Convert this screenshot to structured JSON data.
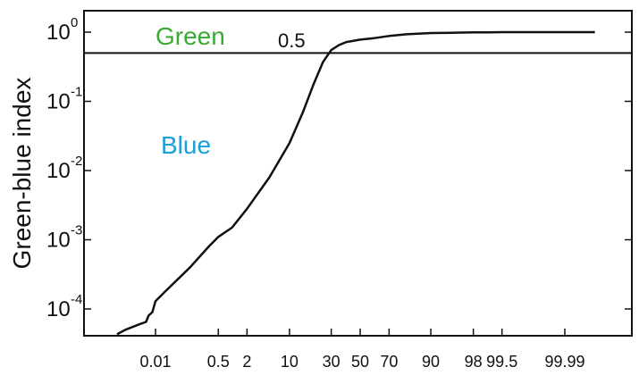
{
  "chart_data": {
    "type": "line",
    "title": "",
    "ylabel": "Green-blue index",
    "xlabel": "",
    "yscale": "log",
    "ylim": [
      3e-05,
      1.4
    ],
    "x_scale": "probability",
    "x_ticks": [
      "0.01",
      "0.5",
      "2",
      "10",
      "30",
      "50",
      "70",
      "90",
      "98",
      "99.5",
      "99.99"
    ],
    "y_ticks": [
      {
        "base": "10",
        "exp": "0"
      },
      {
        "base": "10",
        "exp": "-1"
      },
      {
        "base": "10",
        "exp": "-2"
      },
      {
        "base": "10",
        "exp": "-3"
      },
      {
        "base": "10",
        "exp": "-4"
      }
    ],
    "y_tick_values": [
      1,
      0.1,
      0.01,
      0.001,
      0.0001
    ],
    "reference_line": {
      "y": 0.5,
      "label": "0.5"
    },
    "region_labels": [
      {
        "text": "Green",
        "color": "#3aaa35"
      },
      {
        "text": "Blue",
        "color": "#1a9fd9"
      }
    ],
    "series": [
      {
        "x": [
          0.0005,
          0.001,
          0.003,
          0.005,
          0.006,
          0.008,
          0.01,
          0.02,
          0.05,
          0.1,
          0.3,
          0.5,
          1,
          2,
          5,
          10,
          15,
          20,
          25,
          30,
          35,
          40,
          50,
          60,
          70,
          80,
          90,
          95,
          98,
          99,
          99.5,
          99.9,
          99.99,
          99.999
        ],
        "y": [
          4.3e-05,
          5e-05,
          6e-05,
          6.5e-05,
          8e-05,
          9e-05,
          0.00013,
          0.00018,
          0.00028,
          0.0004,
          0.0008,
          0.0011,
          0.0015,
          0.0028,
          0.008,
          0.025,
          0.07,
          0.18,
          0.37,
          0.55,
          0.65,
          0.72,
          0.78,
          0.82,
          0.88,
          0.93,
          0.97,
          0.98,
          0.99,
          0.995,
          1.0,
          1.0,
          1.0,
          1.0
        ]
      }
    ],
    "colors": {
      "line": "#111111",
      "green": "#3aaa35",
      "blue": "#1a9fd9"
    },
    "grid": false
  }
}
